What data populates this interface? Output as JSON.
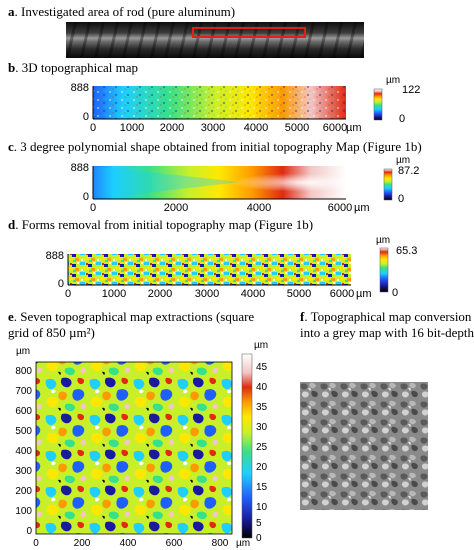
{
  "panels": {
    "a": {
      "letter": "a",
      "caption": ". Investigated area of rod (pure aluminum)"
    },
    "b": {
      "letter": "b",
      "caption": ". 3D topographical map",
      "y_ticks": [
        "888",
        "0"
      ],
      "x_ticks": [
        "0",
        "1000",
        "2000",
        "3000",
        "4000",
        "5000",
        "6000"
      ],
      "x_unit": "µm",
      "colorbar": {
        "unit": "µm",
        "max": "122",
        "min": "0"
      }
    },
    "c": {
      "letter": "c",
      "caption": ". 3 degree polynomial shape obtained from initial topography Map (Figure 1b)",
      "y_ticks": [
        "888",
        "0"
      ],
      "x_ticks": [
        "0",
        "2000",
        "4000",
        "6000"
      ],
      "x_unit": "µm",
      "colorbar": {
        "unit": "µm",
        "max": "87.2",
        "min": "0"
      }
    },
    "d": {
      "letter": "d",
      "caption": ". Forms removal from initial topography map (Figure 1b)",
      "y_ticks": [
        "888",
        "0"
      ],
      "x_ticks": [
        "0",
        "1000",
        "2000",
        "3000",
        "4000",
        "5000",
        "6000"
      ],
      "x_unit": "µm",
      "colorbar": {
        "unit": "µm",
        "max": "65.3",
        "min": "0"
      }
    },
    "e": {
      "letter": "e",
      "caption_line1": ". Seven topographical map extractions (square",
      "caption_line2": "grid of 850 µm²)",
      "y_unit": "µm",
      "y_ticks": [
        "800",
        "700",
        "600",
        "500",
        "400",
        "300",
        "200",
        "100",
        "0"
      ],
      "x_ticks": [
        "0",
        "200",
        "400",
        "600",
        "800"
      ],
      "x_unit": "µm",
      "colorbar": {
        "unit": "µm",
        "ticks": [
          "45",
          "40",
          "35",
          "30",
          "25",
          "20",
          "15",
          "10",
          "5",
          "0"
        ]
      }
    },
    "f": {
      "letter": "f",
      "caption_line1": ". Topographical map conversion",
      "caption_line2": "into a grey map with 16 bit-depth"
    }
  },
  "colors": {
    "rainbow": [
      "#000000",
      "#1a1aa0",
      "#1f5fff",
      "#1ecfff",
      "#37e08a",
      "#c8f02a",
      "#ffe800",
      "#ff9a00",
      "#e02a12",
      "#f3c6c6",
      "#ffffff"
    ],
    "rod_highlight": "#e0201b"
  }
}
